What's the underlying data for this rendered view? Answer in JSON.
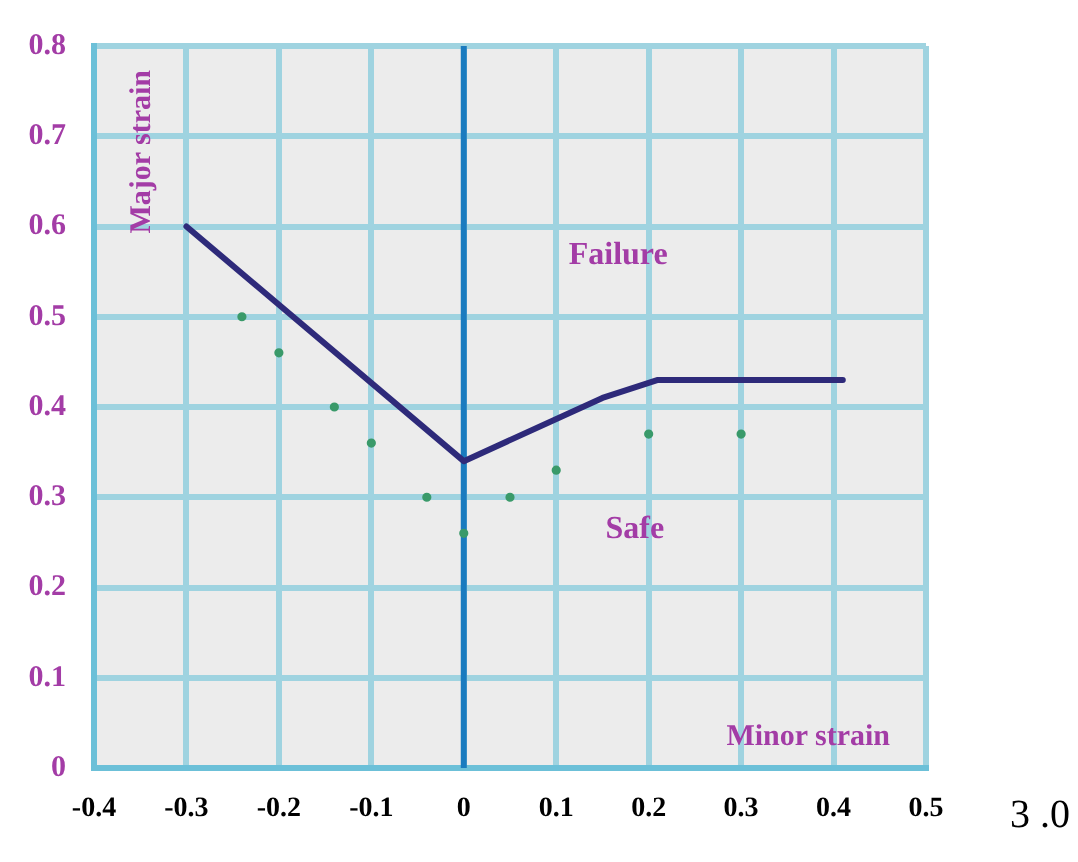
{
  "chart_data": {
    "type": "line",
    "xlabel": "Minor strain",
    "ylabel": "Major strain",
    "annotations": [
      "Failure",
      "Safe",
      "3 .0"
    ],
    "xlim": [
      -0.4,
      0.5
    ],
    "xticks": [
      -0.4,
      -0.3,
      -0.2,
      -0.1,
      0,
      0.1,
      0.2,
      0.3,
      0.4,
      0.5
    ],
    "ylim": [
      0,
      0.8
    ],
    "yticks": [
      0,
      0.1,
      0.2,
      0.3,
      0.4,
      0.5,
      0.6,
      0.7,
      0.8
    ],
    "grid": true,
    "legend": false,
    "ref_lines": [
      {
        "axis": "x",
        "value": 0,
        "color": "#1a7bbf"
      }
    ],
    "series": [
      {
        "type": "line",
        "color": "#2e2a7a",
        "x": [
          -0.3,
          0,
          0.15,
          0.21,
          0.41
        ],
        "values": [
          0.6,
          0.34,
          0.41,
          0.43,
          0.43
        ]
      },
      {
        "type": "scatter",
        "color": "#3a9a6a",
        "x": [
          -0.24,
          -0.2,
          -0.14,
          -0.1,
          -0.04,
          0.05,
          0,
          0.1,
          0.2,
          0.3
        ],
        "values": [
          0.5,
          0.46,
          0.4,
          0.36,
          0.3,
          0.3,
          0.26,
          0.33,
          0.37,
          0.37
        ]
      }
    ]
  }
}
